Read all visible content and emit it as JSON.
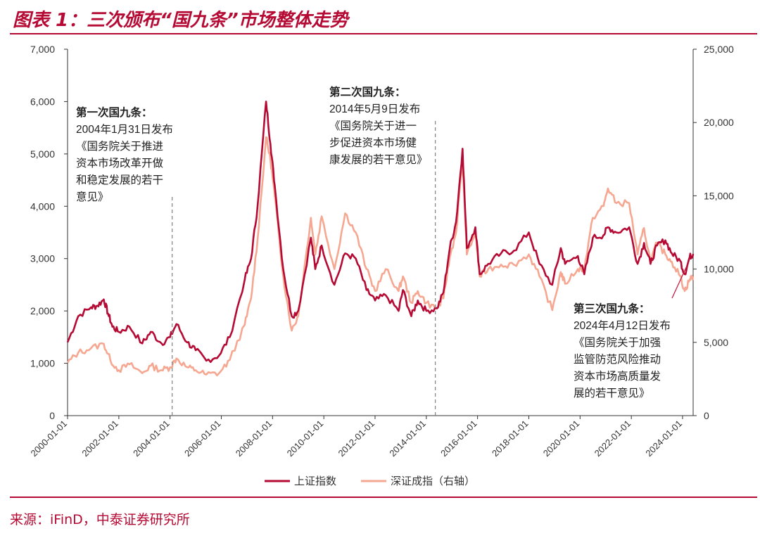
{
  "header": {
    "title": "图表 1：三次颁布“国九条”市场整体走势"
  },
  "source": "来源：iFinD，中泰证券研究所",
  "chart_data": {
    "type": "line",
    "title": "",
    "xlabel": "",
    "ylabel": "",
    "x_ticks": [
      "2000-01-01",
      "2002-01-01",
      "2004-01-01",
      "2006-01-01",
      "2008-01-01",
      "2010-01-01",
      "2012-01-01",
      "2014-01-01",
      "2016-01-01",
      "2018-01-01",
      "2020-01-01",
      "2022-01-01",
      "2024-01-01"
    ],
    "xlim": [
      "2000-01-01",
      "2024-05-31"
    ],
    "y_left": {
      "lim": [
        0,
        7000
      ],
      "ticks": [
        "0",
        "1,000",
        "2,000",
        "3,000",
        "4,000",
        "5,000",
        "6,000",
        "7,000"
      ]
    },
    "y_right": {
      "lim": [
        0,
        25000
      ],
      "ticks": [
        "0",
        "5,000",
        "10,000",
        "15,000",
        "20,000",
        "25,000"
      ]
    },
    "grid": false,
    "legend_position": "bottom",
    "series": [
      {
        "name": "上证指数",
        "axis": "left",
        "color": "#b50a33",
        "points": [
          [
            "2000-01-01",
            1400
          ],
          [
            "2000-06-01",
            1900
          ],
          [
            "2000-12-01",
            2070
          ],
          [
            "2001-03-01",
            2100
          ],
          [
            "2001-06-01",
            2220
          ],
          [
            "2001-08-01",
            1950
          ],
          [
            "2001-10-01",
            1700
          ],
          [
            "2002-01-01",
            1600
          ],
          [
            "2002-06-01",
            1700
          ],
          [
            "2002-12-01",
            1380
          ],
          [
            "2003-04-01",
            1600
          ],
          [
            "2003-09-01",
            1380
          ],
          [
            "2004-01-01",
            1500
          ],
          [
            "2004-04-01",
            1750
          ],
          [
            "2004-09-01",
            1400
          ],
          [
            "2005-01-01",
            1250
          ],
          [
            "2005-06-01",
            1050
          ],
          [
            "2005-12-01",
            1150
          ],
          [
            "2006-05-01",
            1500
          ],
          [
            "2006-12-01",
            2600
          ],
          [
            "2007-03-01",
            3000
          ],
          [
            "2007-06-01",
            4000
          ],
          [
            "2007-10-01",
            6000
          ],
          [
            "2007-12-01",
            5200
          ],
          [
            "2008-02-01",
            4400
          ],
          [
            "2008-06-01",
            2800
          ],
          [
            "2008-10-01",
            1900
          ],
          [
            "2009-01-01",
            2000
          ],
          [
            "2009-07-01",
            3400
          ],
          [
            "2009-09-01",
            2800
          ],
          [
            "2009-12-01",
            3250
          ],
          [
            "2010-06-01",
            2500
          ],
          [
            "2010-11-01",
            3100
          ],
          [
            "2011-04-01",
            3000
          ],
          [
            "2011-09-01",
            2400
          ],
          [
            "2012-01-01",
            2200
          ],
          [
            "2012-06-01",
            2300
          ],
          [
            "2012-12-01",
            2000
          ],
          [
            "2013-02-01",
            2400
          ],
          [
            "2013-06-01",
            1900
          ],
          [
            "2013-09-01",
            2200
          ],
          [
            "2014-01-01",
            2000
          ],
          [
            "2014-06-01",
            2050
          ],
          [
            "2014-09-01",
            2350
          ],
          [
            "2014-12-01",
            3200
          ],
          [
            "2015-03-01",
            3700
          ],
          [
            "2015-06-01",
            5100
          ],
          [
            "2015-08-01",
            3200
          ],
          [
            "2015-12-01",
            3600
          ],
          [
            "2016-02-01",
            2700
          ],
          [
            "2016-06-01",
            2900
          ],
          [
            "2016-12-01",
            3100
          ],
          [
            "2017-06-01",
            3150
          ],
          [
            "2018-01-01",
            3500
          ],
          [
            "2018-06-01",
            2900
          ],
          [
            "2018-12-01",
            2500
          ],
          [
            "2019-04-01",
            3200
          ],
          [
            "2019-06-01",
            2900
          ],
          [
            "2019-12-01",
            3050
          ],
          [
            "2020-03-01",
            2700
          ],
          [
            "2020-07-01",
            3400
          ],
          [
            "2020-12-01",
            3450
          ],
          [
            "2021-02-01",
            3600
          ],
          [
            "2021-06-01",
            3500
          ],
          [
            "2021-12-01",
            3600
          ],
          [
            "2022-04-01",
            2900
          ],
          [
            "2022-07-01",
            3300
          ],
          [
            "2022-10-01",
            2900
          ],
          [
            "2023-01-01",
            3250
          ],
          [
            "2023-05-01",
            3350
          ],
          [
            "2023-08-01",
            3100
          ],
          [
            "2023-12-01",
            2950
          ],
          [
            "2024-02-01",
            2700
          ],
          [
            "2024-04-12",
            3030
          ],
          [
            "2024-05-31",
            3090
          ]
        ]
      },
      {
        "name": "深证成指（右轴）",
        "axis": "right",
        "color": "#f6a791",
        "points": [
          [
            "2000-01-01",
            3600
          ],
          [
            "2000-06-01",
            4300
          ],
          [
            "2000-12-01",
            4600
          ],
          [
            "2001-06-01",
            4900
          ],
          [
            "2001-09-01",
            3800
          ],
          [
            "2002-01-01",
            3100
          ],
          [
            "2002-06-01",
            3500
          ],
          [
            "2002-12-01",
            2900
          ],
          [
            "2003-04-01",
            3400
          ],
          [
            "2003-09-01",
            3100
          ],
          [
            "2004-01-01",
            3300
          ],
          [
            "2004-04-01",
            3900
          ],
          [
            "2004-09-01",
            3300
          ],
          [
            "2005-01-01",
            3100
          ],
          [
            "2005-06-01",
            2800
          ],
          [
            "2005-12-01",
            2900
          ],
          [
            "2006-05-01",
            3800
          ],
          [
            "2006-12-01",
            6200
          ],
          [
            "2007-03-01",
            8000
          ],
          [
            "2007-06-01",
            12000
          ],
          [
            "2007-10-01",
            19000
          ],
          [
            "2007-12-01",
            17500
          ],
          [
            "2008-02-01",
            15000
          ],
          [
            "2008-06-01",
            9500
          ],
          [
            "2008-10-01",
            5800
          ],
          [
            "2009-01-01",
            6800
          ],
          [
            "2009-07-01",
            13500
          ],
          [
            "2009-09-01",
            11000
          ],
          [
            "2009-12-01",
            13600
          ],
          [
            "2010-06-01",
            10000
          ],
          [
            "2010-11-01",
            13800
          ],
          [
            "2011-04-01",
            12500
          ],
          [
            "2011-09-01",
            10000
          ],
          [
            "2012-01-01",
            8500
          ],
          [
            "2012-06-01",
            10000
          ],
          [
            "2012-12-01",
            8500
          ],
          [
            "2013-02-01",
            9500
          ],
          [
            "2013-06-01",
            7700
          ],
          [
            "2013-09-01",
            8500
          ],
          [
            "2014-01-01",
            7700
          ],
          [
            "2014-06-01",
            7300
          ],
          [
            "2014-09-01",
            8000
          ],
          [
            "2014-12-01",
            10800
          ],
          [
            "2015-03-01",
            12500
          ],
          [
            "2015-06-01",
            17500
          ],
          [
            "2015-08-01",
            11000
          ],
          [
            "2015-12-01",
            12500
          ],
          [
            "2016-02-01",
            9500
          ],
          [
            "2016-06-01",
            10000
          ],
          [
            "2016-12-01",
            10300
          ],
          [
            "2017-06-01",
            10300
          ],
          [
            "2018-01-01",
            11000
          ],
          [
            "2018-06-01",
            9500
          ],
          [
            "2018-12-01",
            7200
          ],
          [
            "2019-04-01",
            9800
          ],
          [
            "2019-06-01",
            9000
          ],
          [
            "2019-12-01",
            10000
          ],
          [
            "2020-03-01",
            10000
          ],
          [
            "2020-07-01",
            13500
          ],
          [
            "2020-12-01",
            14300
          ],
          [
            "2021-02-01",
            15500
          ],
          [
            "2021-06-01",
            14500
          ],
          [
            "2021-12-01",
            14500
          ],
          [
            "2022-04-01",
            11000
          ],
          [
            "2022-07-01",
            12800
          ],
          [
            "2022-10-01",
            10500
          ],
          [
            "2023-01-01",
            11800
          ],
          [
            "2023-05-01",
            11000
          ],
          [
            "2023-08-01",
            10500
          ],
          [
            "2023-12-01",
            9500
          ],
          [
            "2024-02-01",
            8500
          ],
          [
            "2024-04-12",
            9300
          ],
          [
            "2024-05-31",
            9500
          ]
        ]
      }
    ],
    "annotations": [
      {
        "date": "2004-01-31",
        "lines": [
          "第一次国九条：",
          "2004年1月31日发布",
          "《国务院关于推进",
          "资本市场改革开做",
          "和稳定发展的若干",
          "意见》"
        ]
      },
      {
        "date": "2014-05-09",
        "lines": [
          "第二次国九条：",
          "2014年5月9日发布",
          "《国务院关于进一",
          "步促进资本市场健",
          "康发展的若干意见》"
        ]
      },
      {
        "date": "2024-04-12",
        "lines": [
          "第三次国九条：",
          "2024年4月12日发布",
          "《国务院关于加强",
          "监管防范风险推动",
          "资本市场高质量发",
          "展的若干意见》"
        ]
      }
    ]
  }
}
